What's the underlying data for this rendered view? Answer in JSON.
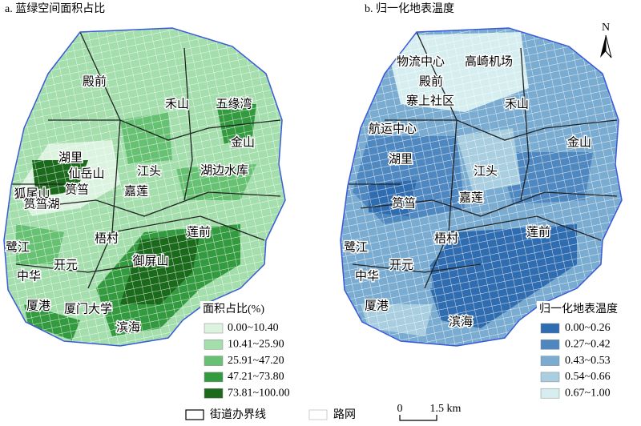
{
  "panels": [
    {
      "title": "a. 蓝绿空间面积占比",
      "places": [
        "殿前",
        "禾山",
        "五缘湾",
        "金山",
        "湖里",
        "仙岳山",
        "江头",
        "湖边水库",
        "狐尾山",
        "筼筜",
        "嘉莲",
        "筼筜湖",
        "莲前",
        "梧村",
        "鹭江",
        "开元",
        "御屏山",
        "中华",
        "厦港",
        "厦门大学",
        "滨海"
      ],
      "legend": {
        "title": "面积占比(%)",
        "items": [
          {
            "label": "0.00~10.40",
            "color": "#dcf3e0"
          },
          {
            "label": "10.41~25.90",
            "color": "#a3deac"
          },
          {
            "label": "25.91~47.20",
            "color": "#67c173"
          },
          {
            "label": "47.21~73.80",
            "color": "#339a3f"
          },
          {
            "label": "73.81~100.00",
            "color": "#1b6a1c"
          }
        ]
      }
    },
    {
      "title": "b. 归一化地表温度",
      "places": [
        "物流中心",
        "高崎机场",
        "殿前",
        "寨上社区",
        "禾山",
        "航运中心",
        "金山",
        "湖里",
        "江头",
        "筼筜",
        "嘉莲",
        "莲前",
        "梧村",
        "鹭江",
        "开元",
        "中华",
        "厦港",
        "滨海"
      ],
      "legend": {
        "title": "归一化地表温度",
        "items": [
          {
            "label": "0.00~0.26",
            "color": "#2f6cb0"
          },
          {
            "label": "0.27~0.42",
            "color": "#4f88c0"
          },
          {
            "label": "0.43~0.53",
            "color": "#7aabd0"
          },
          {
            "label": "0.54~0.66",
            "color": "#a8cee0"
          },
          {
            "label": "0.67~1.00",
            "color": "#d6eef0"
          }
        ]
      }
    }
  ],
  "footer": {
    "boundary_label": "街道办界线",
    "road_label": "路网",
    "scale": {
      "start": "0",
      "end": "1.5 km"
    },
    "north": "N"
  }
}
